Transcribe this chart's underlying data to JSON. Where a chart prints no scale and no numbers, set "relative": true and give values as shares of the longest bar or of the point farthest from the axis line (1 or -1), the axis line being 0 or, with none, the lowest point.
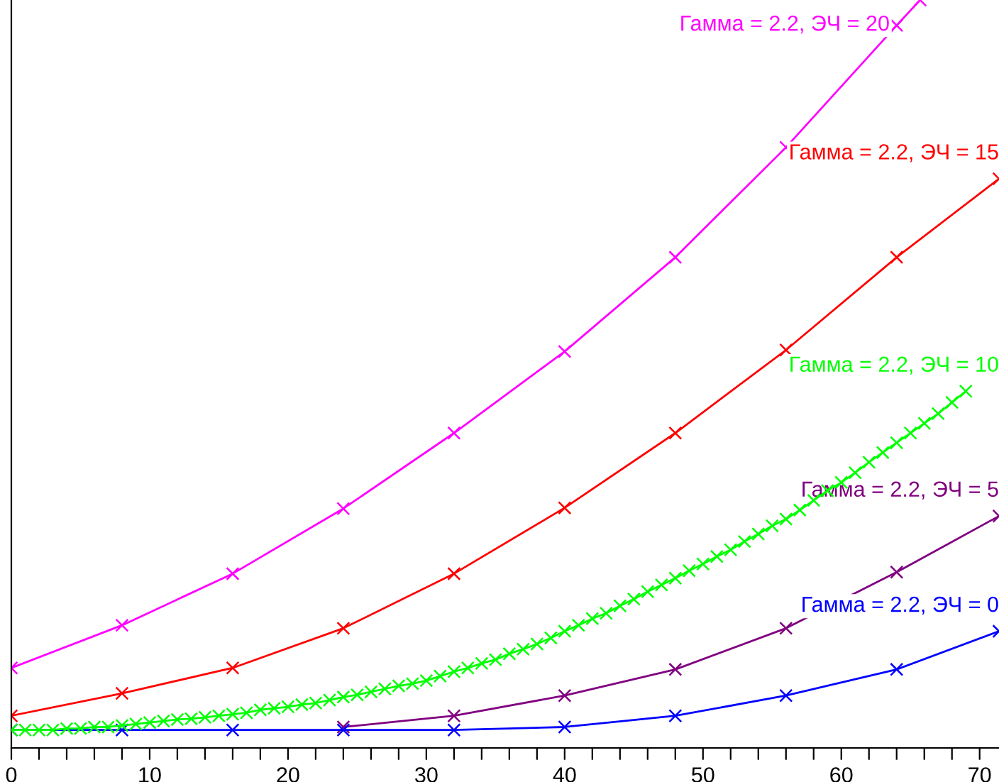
{
  "chart_data": {
    "type": "line",
    "relative": true,
    "xlim": [
      0,
      71.4
    ],
    "xticks": [
      0,
      {
        "value": 2,
        "label": null
      },
      {
        "value": 4,
        "label": null
      },
      {
        "value": 6,
        "label": null
      },
      {
        "value": 8,
        "label": null
      },
      10,
      {
        "value": 12,
        "label": null
      },
      {
        "value": 14,
        "label": null
      },
      {
        "value": 16,
        "label": null
      },
      {
        "value": 18,
        "label": null
      },
      20,
      {
        "value": 22,
        "label": null
      },
      {
        "value": 24,
        "label": null
      },
      {
        "value": 26,
        "label": null
      },
      {
        "value": 28,
        "label": null
      },
      30,
      {
        "value": 32,
        "label": null
      },
      {
        "value": 34,
        "label": null
      },
      {
        "value": 36,
        "label": null
      },
      {
        "value": 38,
        "label": null
      },
      40,
      {
        "value": 42,
        "label": null
      },
      {
        "value": 44,
        "label": null
      },
      {
        "value": 46,
        "label": null
      },
      {
        "value": 48,
        "label": null
      },
      50,
      {
        "value": 52,
        "label": null
      },
      {
        "value": 54,
        "label": null
      },
      {
        "value": 56,
        "label": null
      },
      {
        "value": 58,
        "label": null
      },
      60,
      {
        "value": 62,
        "label": null
      },
      {
        "value": 64,
        "label": null
      },
      {
        "value": 66,
        "label": null
      },
      {
        "value": 68,
        "label": null
      },
      70
    ],
    "tick_labels": "x",
    "grid": false,
    "legend": false,
    "marker": "cross",
    "line_style": "solid",
    "series": [
      {
        "name": "Гамма = 2.2, ЭЧ = 20",
        "color": "#ff00ff",
        "x": [
          0,
          8,
          16,
          24,
          32,
          40,
          48,
          56,
          64,
          65.7
        ],
        "values": [
          0.107,
          0.164,
          0.233,
          0.32,
          0.421,
          0.53,
          0.656,
          0.803,
          0.966,
          1
        ]
      },
      {
        "name": "Гамма = 2.2, ЭЧ = 15",
        "color": "#ff0000",
        "x": [
          0,
          8,
          16,
          24,
          32,
          40,
          48,
          56,
          64,
          71.4
        ],
        "values": [
          0.043,
          0.073,
          0.107,
          0.16,
          0.233,
          0.321,
          0.421,
          0.532,
          0.656,
          0.761
        ]
      },
      {
        "name": "Гамма = 2.2, ЭЧ = 10",
        "color": "#00ff00",
        "x": [
          0,
          1,
          2,
          3,
          4,
          5,
          6,
          7,
          8,
          9,
          10,
          11,
          12,
          13,
          14,
          15,
          16,
          17,
          18,
          19,
          20,
          21,
          22,
          23,
          24,
          25,
          26,
          27,
          28,
          29,
          30,
          31,
          32,
          33,
          34,
          35,
          36,
          37,
          38,
          39,
          40,
          41,
          42,
          43,
          44,
          45,
          46,
          47,
          48,
          49,
          50,
          51,
          52,
          53,
          54,
          55,
          56,
          57,
          58,
          59,
          60,
          61,
          62,
          63,
          64,
          65,
          66,
          67,
          68,
          69
        ],
        "values": [
          0.024,
          0.024,
          0.024,
          0.024,
          0.026,
          0.026,
          0.028,
          0.028,
          0.03,
          0.032,
          0.034,
          0.036,
          0.038,
          0.039,
          0.041,
          0.043,
          0.045,
          0.047,
          0.051,
          0.053,
          0.055,
          0.058,
          0.06,
          0.064,
          0.068,
          0.071,
          0.075,
          0.079,
          0.083,
          0.086,
          0.09,
          0.096,
          0.102,
          0.107,
          0.113,
          0.118,
          0.126,
          0.132,
          0.139,
          0.147,
          0.156,
          0.164,
          0.173,
          0.18,
          0.19,
          0.199,
          0.209,
          0.218,
          0.227,
          0.237,
          0.246,
          0.256,
          0.265,
          0.276,
          0.286,
          0.297,
          0.306,
          0.318,
          0.331,
          0.344,
          0.355,
          0.368,
          0.382,
          0.395,
          0.408,
          0.421,
          0.434,
          0.447,
          0.462,
          0.477
        ]
      },
      {
        "name": "Гамма = 2.2, ЭЧ = 5",
        "color": "#800080",
        "x": [
          24,
          32,
          40,
          48,
          56,
          64,
          71.4
        ],
        "values": [
          0.028,
          0.043,
          0.07,
          0.105,
          0.16,
          0.235,
          0.31
        ]
      },
      {
        "name": "Гамма = 2.2, ЭЧ = 0",
        "color": "#0000ff",
        "x": [
          0,
          8,
          16,
          24,
          32,
          40,
          48,
          56,
          64,
          71.4
        ],
        "values": [
          0.024,
          0.024,
          0.024,
          0.024,
          0.024,
          0.028,
          0.043,
          0.07,
          0.105,
          0.156
        ]
      }
    ]
  }
}
